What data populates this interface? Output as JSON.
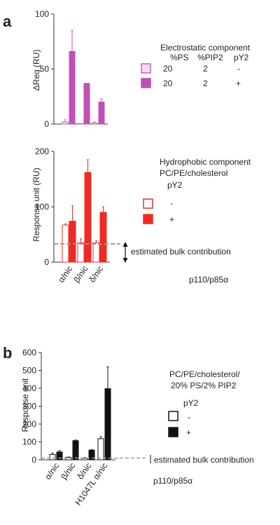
{
  "chart_data": [
    {
      "panel": "a",
      "type": "bar",
      "ylabel": "ΔReq (RU)",
      "ylim": [
        0,
        100
      ],
      "yticks": [
        0,
        50,
        100
      ],
      "categories": [
        "α/nic",
        "β/nic",
        "δ/nic"
      ],
      "series": [
        {
          "label": "-",
          "fill": "#f3dcf0",
          "stroke": "#c561b8",
          "values": [
            2,
            0,
            1
          ],
          "err": [
            2,
            0,
            1
          ]
        },
        {
          "label": "+",
          "fill": "#c24fb3",
          "stroke": "#c24fb3",
          "values": [
            66,
            37,
            20
          ],
          "err": [
            19,
            0,
            3
          ]
        }
      ],
      "legend": {
        "title": "Electrostatic component",
        "headers": [
          "%PS",
          "%PIP2",
          "pY2"
        ],
        "rows": [
          [
            "20",
            "2",
            "-"
          ],
          [
            "20",
            "2",
            "+"
          ]
        ]
      },
      "grid": false
    },
    {
      "panel": "a",
      "type": "bar",
      "ylabel": "Response unit (RU)",
      "ylim": [
        0,
        200
      ],
      "yticks": [
        0,
        100,
        200
      ],
      "categories": [
        "α/nic",
        "β/nic",
        "δ/nic"
      ],
      "series": [
        {
          "label": "-",
          "fill": "#ffffff",
          "stroke": "#e8302a",
          "values": [
            67,
            35,
            35
          ],
          "err": [
            2,
            7,
            4
          ]
        },
        {
          "label": "+",
          "fill": "#ed2b24",
          "stroke": "#ed2b24",
          "values": [
            74,
            162,
            90
          ],
          "err": [
            28,
            23,
            10
          ]
        }
      ],
      "reference_line": {
        "value": 33,
        "label": "estimated bulk contribution"
      },
      "legend": {
        "title_lines": [
          "Hydrophobic component",
          "PC/PE/cholesterol"
        ],
        "header": "pY2",
        "rows": [
          "-",
          "+"
        ]
      },
      "group_label": "p110/p85α",
      "grid": false
    },
    {
      "panel": "b",
      "type": "bar",
      "ylabel": "Response unit",
      "ylim": [
        0,
        600
      ],
      "yticks": [
        0,
        100,
        200,
        300,
        400,
        500,
        600
      ],
      "categories": [
        "α/nic",
        "β/nic",
        "δ/nic",
        "H1047L α/nic"
      ],
      "series": [
        {
          "label": "-",
          "fill": "#ffffff",
          "stroke": "#111111",
          "values": [
            30,
            14,
            10,
            118
          ],
          "err": [
            8,
            2,
            2,
            12
          ]
        },
        {
          "label": "+",
          "fill": "#111111",
          "stroke": "#111111",
          "values": [
            44,
            107,
            54,
            398
          ],
          "err": [
            8,
            4,
            3,
            122
          ]
        }
      ],
      "reference_line": {
        "value": 10,
        "label": "estimated bulk contribution"
      },
      "legend": {
        "title_lines": [
          "PC/PE/cholesterol/",
          "20% PS/2% PIP2"
        ],
        "header": "pY2",
        "rows": [
          "-",
          "+"
        ]
      },
      "group_label": "p110/p85α",
      "grid": false
    }
  ]
}
